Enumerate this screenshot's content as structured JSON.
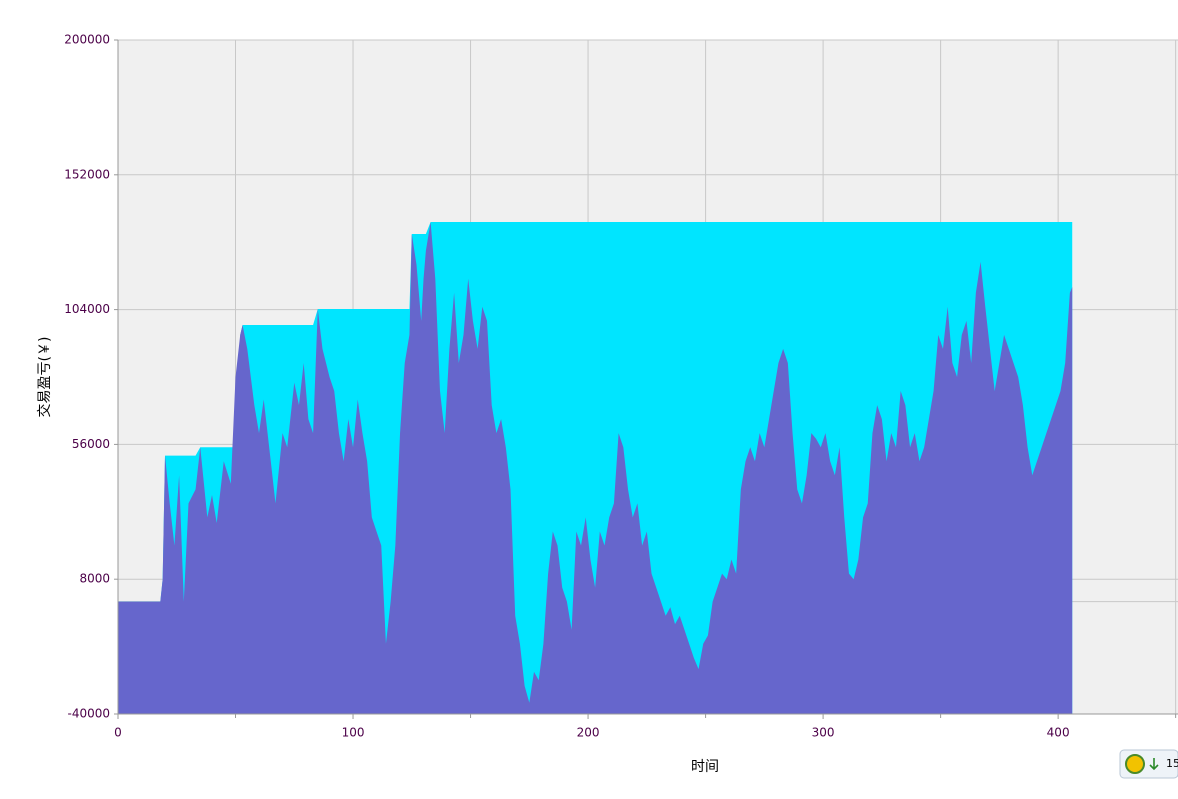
{
  "chart_data": {
    "type": "area",
    "x_label": "时间",
    "y_label": "交易盈亏(￥)",
    "x": [
      0,
      10,
      18,
      19,
      20,
      22,
      24,
      26,
      28,
      30,
      33,
      35,
      38,
      40,
      42,
      45,
      48,
      50,
      52,
      53,
      55,
      58,
      60,
      62,
      65,
      67,
      70,
      72,
      75,
      77,
      79,
      81,
      83,
      85,
      87,
      90,
      92,
      94,
      96,
      98,
      100,
      102,
      104,
      106,
      108,
      110,
      112,
      114,
      116,
      118,
      120,
      122,
      124,
      125,
      127,
      129,
      130,
      131,
      133,
      135,
      137,
      139,
      141,
      143,
      145,
      147,
      149,
      151,
      153,
      155,
      157,
      159,
      161,
      163,
      165,
      167,
      169,
      171,
      173,
      175,
      177,
      179,
      181,
      183,
      185,
      187,
      189,
      191,
      193,
      195,
      197,
      199,
      201,
      203,
      205,
      207,
      209,
      211,
      213,
      215,
      217,
      219,
      221,
      223,
      225,
      227,
      229,
      231,
      233,
      235,
      237,
      239,
      241,
      243,
      245,
      247,
      249,
      251,
      253,
      255,
      257,
      259,
      261,
      263,
      265,
      267,
      269,
      271,
      273,
      275,
      277,
      279,
      281,
      283,
      285,
      287,
      289,
      291,
      293,
      295,
      297,
      299,
      301,
      303,
      305,
      307,
      309,
      311,
      313,
      315,
      317,
      319,
      321,
      323,
      325,
      327,
      329,
      331,
      333,
      335,
      337,
      339,
      341,
      343,
      345,
      347,
      349,
      351,
      353,
      355,
      357,
      359,
      361,
      363,
      365,
      367,
      369,
      371,
      373,
      375,
      377,
      379,
      381,
      383,
      385,
      387,
      389,
      391,
      393,
      395,
      397,
      399,
      401,
      403,
      405,
      406
    ],
    "series": [
      {
        "color": "#00e5ff",
        "values": [
          0,
          0,
          0,
          8000,
          52000,
          52000,
          52000,
          52000,
          52000,
          52000,
          52000,
          55000,
          55000,
          55000,
          55000,
          55000,
          55000,
          55000,
          95000,
          98500,
          98500,
          98500,
          98500,
          98500,
          98500,
          98500,
          98500,
          98500,
          98500,
          98500,
          98500,
          98500,
          98500,
          104200,
          104200,
          104200,
          104200,
          104200,
          104200,
          104200,
          104200,
          104200,
          104200,
          104200,
          104200,
          104200,
          104200,
          104200,
          104200,
          104200,
          104200,
          104200,
          104200,
          130900,
          130900,
          130900,
          130900,
          130900,
          135200,
          135200,
          135200,
          135200,
          135200,
          135200,
          135200,
          135200,
          135200,
          135200,
          135200,
          135200,
          135200,
          135200,
          135200,
          135200,
          135200,
          135200,
          135200,
          135200,
          135200,
          135200,
          135200,
          135200,
          135200,
          135200,
          135200,
          135200,
          135200,
          135200,
          135200,
          135200,
          135200,
          135200,
          135200,
          135200,
          135200,
          135200,
          135200,
          135200,
          135200,
          135200,
          135200,
          135200,
          135200,
          135200,
          135200,
          135200,
          135200,
          135200,
          135200,
          135200,
          135200,
          135200,
          135200,
          135200,
          135200,
          135200,
          135200,
          135200,
          135200,
          135200,
          135200,
          135200,
          135200,
          135200,
          135200,
          135200,
          135200,
          135200,
          135200,
          135200,
          135200,
          135200,
          135200,
          135200,
          135200,
          135200,
          135200,
          135200,
          135200,
          135200,
          135200,
          135200,
          135200,
          135200,
          135200,
          135200,
          135200,
          135200,
          135200,
          135200,
          135200,
          135200,
          135200,
          135200,
          135200,
          135200,
          135200,
          135200,
          135200,
          135200,
          135200,
          135200,
          135200,
          135200,
          135200,
          135200,
          135200,
          135200,
          135200,
          135200,
          135200,
          135200,
          135200,
          135200,
          135200,
          135200,
          135200,
          135200,
          135200,
          135200,
          135200,
          135200,
          135200,
          135200,
          135200,
          135200,
          135200,
          135200,
          135200,
          135200,
          135200,
          135200,
          135200,
          135200,
          135200,
          135200
        ]
      },
      {
        "color": "#6666cc",
        "values": [
          0,
          0,
          0,
          8000,
          52000,
          35000,
          20000,
          45000,
          0,
          35000,
          40000,
          55000,
          30000,
          38000,
          28000,
          50000,
          42000,
          80000,
          95000,
          98500,
          90000,
          70000,
          60000,
          72000,
          50000,
          35000,
          60000,
          55000,
          78000,
          70000,
          85000,
          65000,
          60000,
          104200,
          90000,
          80000,
          75000,
          60000,
          50000,
          65000,
          55000,
          72000,
          60000,
          50000,
          30000,
          25000,
          20000,
          -15000,
          0,
          20000,
          60000,
          85000,
          95000,
          130900,
          120000,
          100000,
          115000,
          125000,
          135200,
          115000,
          75000,
          60000,
          90000,
          110000,
          85000,
          95000,
          115000,
          100000,
          90000,
          105000,
          100000,
          70000,
          60000,
          65000,
          55000,
          40000,
          -5000,
          -15000,
          -30000,
          -36000,
          -25000,
          -28000,
          -15000,
          10000,
          25000,
          20000,
          5000,
          0,
          -10000,
          25000,
          20000,
          30000,
          15000,
          5000,
          25000,
          20000,
          30000,
          35000,
          60000,
          55000,
          40000,
          30000,
          35000,
          20000,
          25000,
          10000,
          5000,
          0,
          -5000,
          -2000,
          -8000,
          -5000,
          -10000,
          -15000,
          -20000,
          -24000,
          -15000,
          -12000,
          0,
          5000,
          10000,
          8000,
          15000,
          10000,
          40000,
          50000,
          55000,
          50000,
          60000,
          55000,
          65000,
          75000,
          85000,
          90000,
          85000,
          60000,
          40000,
          35000,
          45000,
          60000,
          58000,
          55000,
          60000,
          50000,
          45000,
          55000,
          30000,
          10000,
          8000,
          15000,
          30000,
          35000,
          60000,
          70000,
          65000,
          50000,
          60000,
          55000,
          75000,
          70000,
          55000,
          60000,
          50000,
          55000,
          65000,
          75000,
          95000,
          90000,
          105000,
          85000,
          80000,
          95000,
          100000,
          85000,
          110000,
          121000,
          105000,
          90000,
          75000,
          85000,
          95000,
          90000,
          85000,
          80000,
          70000,
          55000,
          45000,
          50000,
          55000,
          60000,
          65000,
          70000,
          75000,
          85000,
          110000,
          112000
        ]
      }
    ],
    "xlim": [
      0,
      451
    ],
    "ylim": [
      -40000,
      200000
    ],
    "xticks": [
      0,
      100,
      200,
      300,
      400
    ],
    "x_minor_ticks": [
      50,
      150,
      250,
      350,
      450
    ],
    "yticks": [
      -40000,
      8000,
      56000,
      104000,
      152000,
      200000
    ],
    "grid": true,
    "zero_line": true
  },
  "badge": {
    "text": "15"
  }
}
